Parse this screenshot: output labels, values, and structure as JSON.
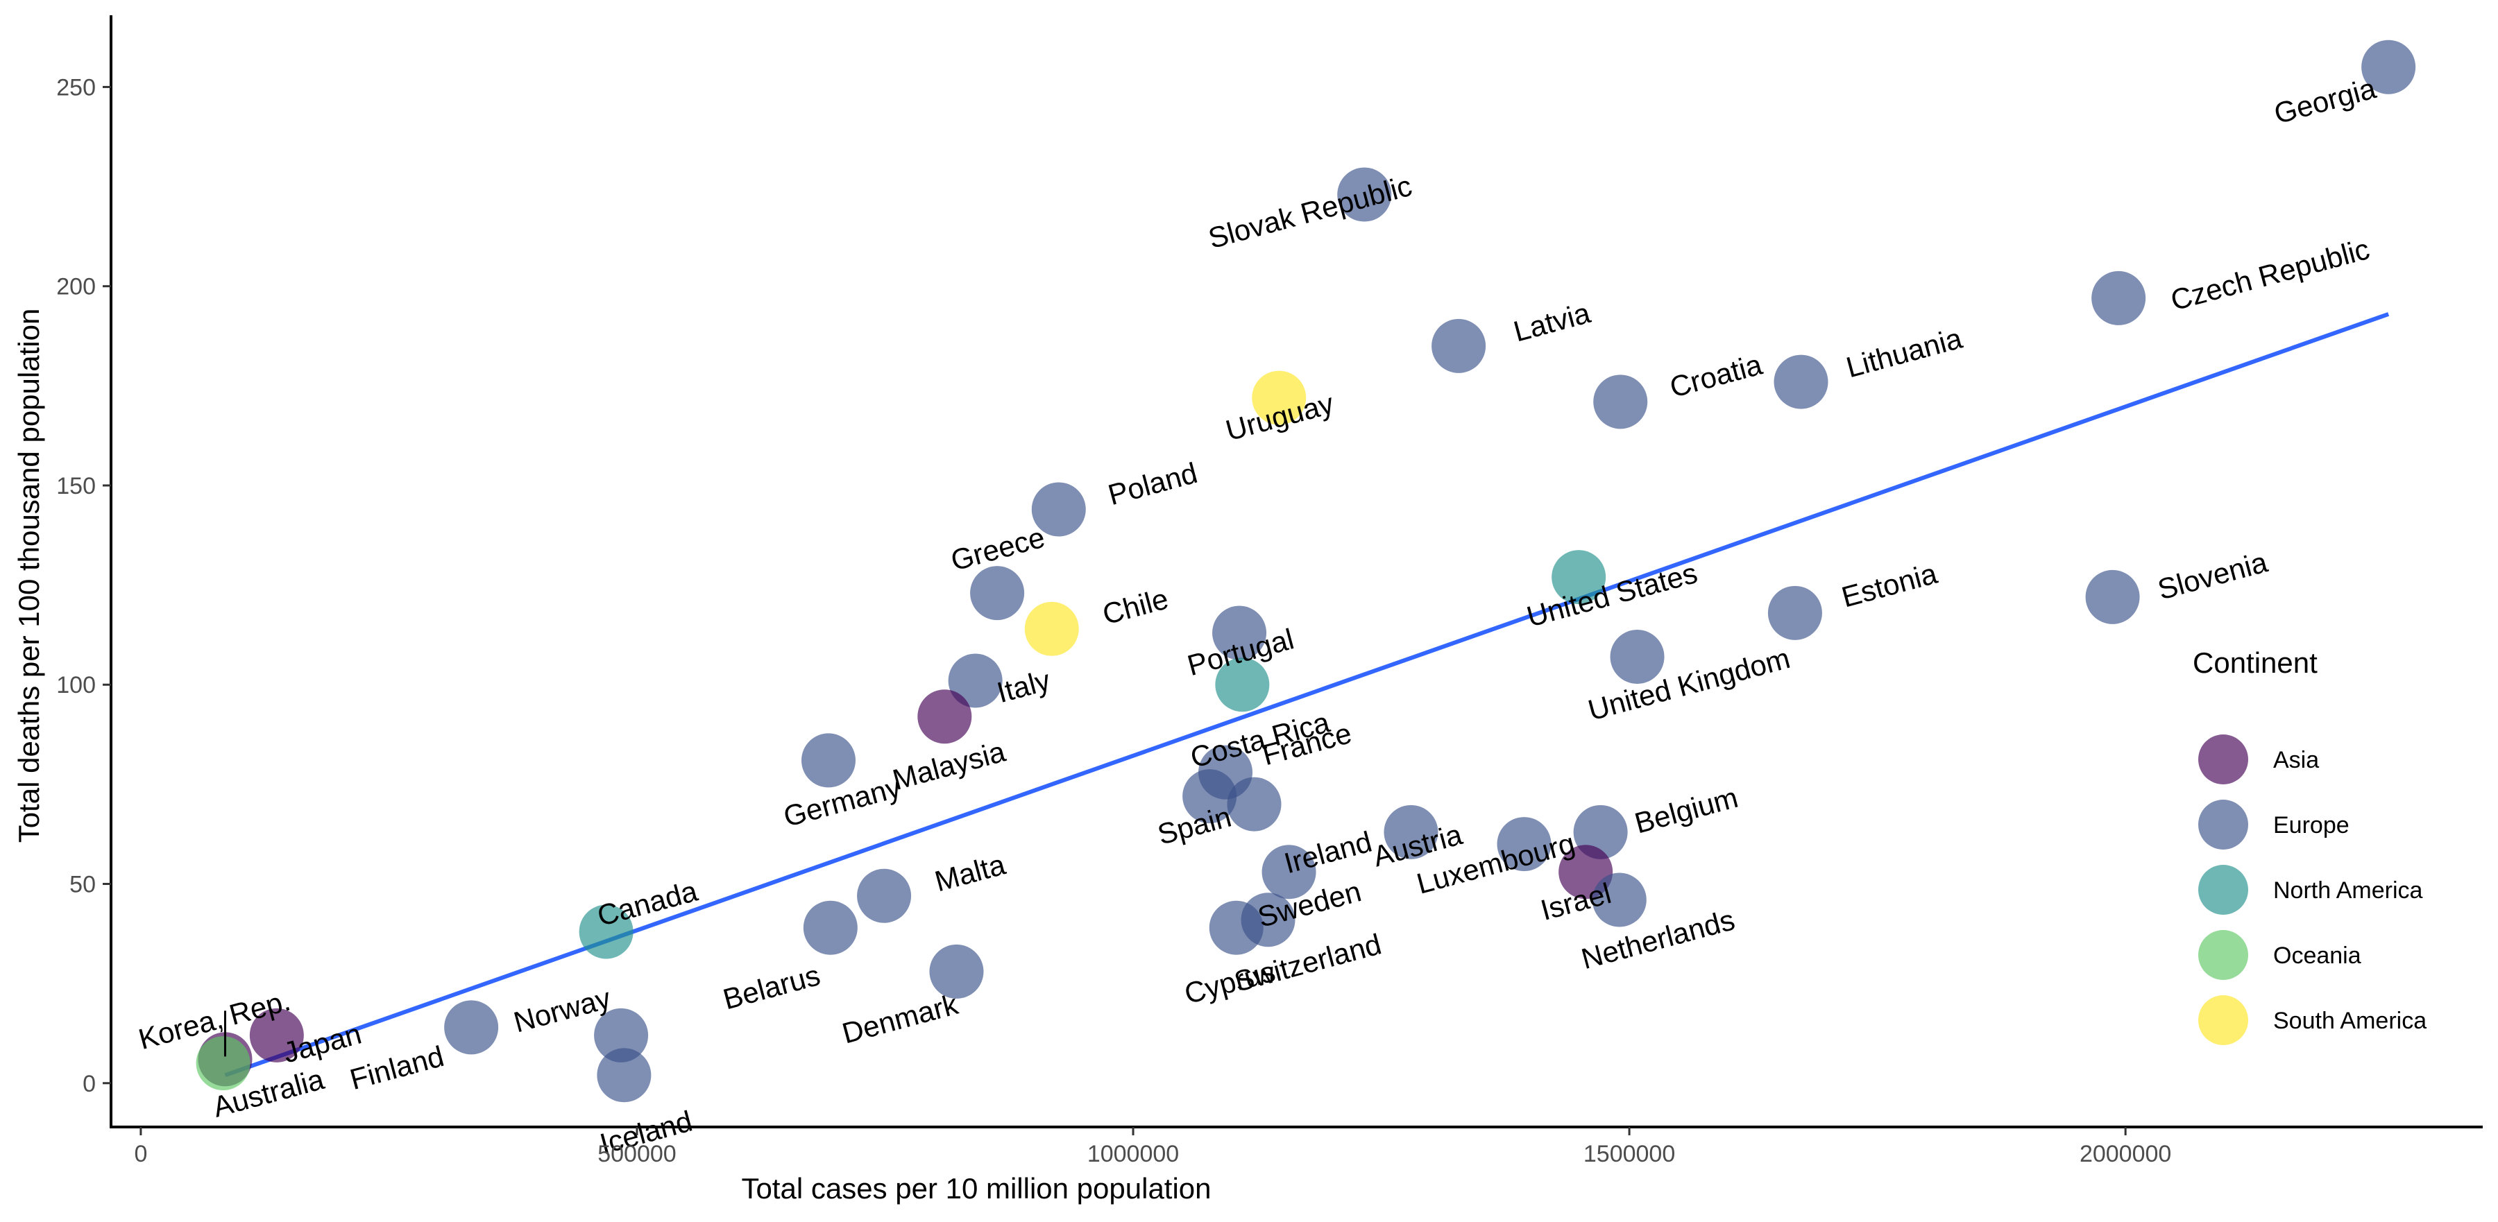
{
  "chart_data": {
    "type": "scatter",
    "xlabel": "Total cases per 10 million population",
    "ylabel": "Total deaths per 100 thousand population",
    "xlim": [
      -30000,
      2360000
    ],
    "ylim": [
      -11,
      268
    ],
    "x_ticks": [
      0,
      500000,
      1000000,
      1500000,
      2000000
    ],
    "x_tick_labels": [
      "0",
      "500000",
      "1000000",
      "1500000",
      "2000000"
    ],
    "y_ticks": [
      0,
      50,
      100,
      150,
      200,
      250
    ],
    "y_tick_labels": [
      "0",
      "50",
      "100",
      "150",
      "200",
      "250"
    ],
    "grid": false,
    "legend": {
      "title": "Continent",
      "placement": "right",
      "entries": [
        {
          "name": "Asia",
          "color": "#440154"
        },
        {
          "name": "Europe",
          "color": "#3B528B"
        },
        {
          "name": "North America",
          "color": "#21908C"
        },
        {
          "name": "Oceania",
          "color": "#5DC863"
        },
        {
          "name": "South America",
          "color": "#FDE725"
        }
      ]
    },
    "trend_line": {
      "color": "#3366FF",
      "x": [
        85000,
        2265000
      ],
      "y": [
        2,
        193
      ]
    },
    "points": [
      {
        "label": "Georgia",
        "continent": "Europe",
        "x": 2265000,
        "y": 255
      },
      {
        "label": "Slovak Republic",
        "continent": "Europe",
        "x": 1233000,
        "y": 223
      },
      {
        "label": "Czech Republic",
        "continent": "Europe",
        "x": 1993000,
        "y": 197
      },
      {
        "label": "Latvia",
        "continent": "Europe",
        "x": 1328000,
        "y": 185
      },
      {
        "label": "Lithuania",
        "continent": "Europe",
        "x": 1673000,
        "y": 176
      },
      {
        "label": "Croatia",
        "continent": "Europe",
        "x": 1491000,
        "y": 171
      },
      {
        "label": "Uruguay",
        "continent": "South America",
        "x": 1147000,
        "y": 172
      },
      {
        "label": "Poland",
        "continent": "Europe",
        "x": 925000,
        "y": 144
      },
      {
        "label": "United States",
        "continent": "North America",
        "x": 1449000,
        "y": 127
      },
      {
        "label": "Greece",
        "continent": "Europe",
        "x": 863000,
        "y": 123
      },
      {
        "label": "Slovenia",
        "continent": "Europe",
        "x": 1987000,
        "y": 122
      },
      {
        "label": "Estonia",
        "continent": "Europe",
        "x": 1667000,
        "y": 118
      },
      {
        "label": "Chile",
        "continent": "South America",
        "x": 918000,
        "y": 114
      },
      {
        "label": "Portugal",
        "continent": "Europe",
        "x": 1107000,
        "y": 113
      },
      {
        "label": "United Kingdom",
        "continent": "Europe",
        "x": 1508000,
        "y": 107
      },
      {
        "label": "Italy",
        "continent": "Europe",
        "x": 841000,
        "y": 101
      },
      {
        "label": "Costa Rica",
        "continent": "North America",
        "x": 1110000,
        "y": 100
      },
      {
        "label": "Malaysia",
        "continent": "Asia",
        "x": 810000,
        "y": 92
      },
      {
        "label": "Germany",
        "continent": "Europe",
        "x": 693000,
        "y": 81
      },
      {
        "label": "France",
        "continent": "Europe",
        "x": 1093000,
        "y": 78
      },
      {
        "label": "Spain",
        "continent": "Europe",
        "x": 1077000,
        "y": 72
      },
      {
        "label": "Ireland",
        "continent": "Europe",
        "x": 1122000,
        "y": 70
      },
      {
        "label": "Austria",
        "continent": "Europe",
        "x": 1280000,
        "y": 63
      },
      {
        "label": "Belgium",
        "continent": "Europe",
        "x": 1471000,
        "y": 63
      },
      {
        "label": "Luxembourg",
        "continent": "Europe",
        "x": 1394000,
        "y": 60
      },
      {
        "label": "Sweden",
        "continent": "Europe",
        "x": 1157000,
        "y": 53
      },
      {
        "label": "Israel",
        "continent": "Asia",
        "x": 1456000,
        "y": 53
      },
      {
        "label": "Malta",
        "continent": "Europe",
        "x": 749000,
        "y": 47
      },
      {
        "label": "Netherlands",
        "continent": "Europe",
        "x": 1490000,
        "y": 46
      },
      {
        "label": "Switzerland",
        "continent": "Europe",
        "x": 1136000,
        "y": 41
      },
      {
        "label": "Cyprus",
        "continent": "Europe",
        "x": 1104000,
        "y": 39
      },
      {
        "label": "Belarus",
        "continent": "Europe",
        "x": 695000,
        "y": 39
      },
      {
        "label": "Canada",
        "continent": "North America",
        "x": 469000,
        "y": 38
      },
      {
        "label": "Denmark",
        "continent": "Europe",
        "x": 822000,
        "y": 28
      },
      {
        "label": "Finland",
        "continent": "Europe",
        "x": 333000,
        "y": 14
      },
      {
        "label": "Japan",
        "continent": "Asia",
        "x": 137000,
        "y": 12
      },
      {
        "label": "Norway",
        "continent": "Europe",
        "x": 484000,
        "y": 12
      },
      {
        "label": "Korea, Rep.",
        "continent": "Asia",
        "x": 85000,
        "y": 6
      },
      {
        "label": "Australia",
        "continent": "Oceania",
        "x": 83000,
        "y": 5
      },
      {
        "label": "Iceland",
        "continent": "Europe",
        "x": 487000,
        "y": 2
      }
    ]
  }
}
